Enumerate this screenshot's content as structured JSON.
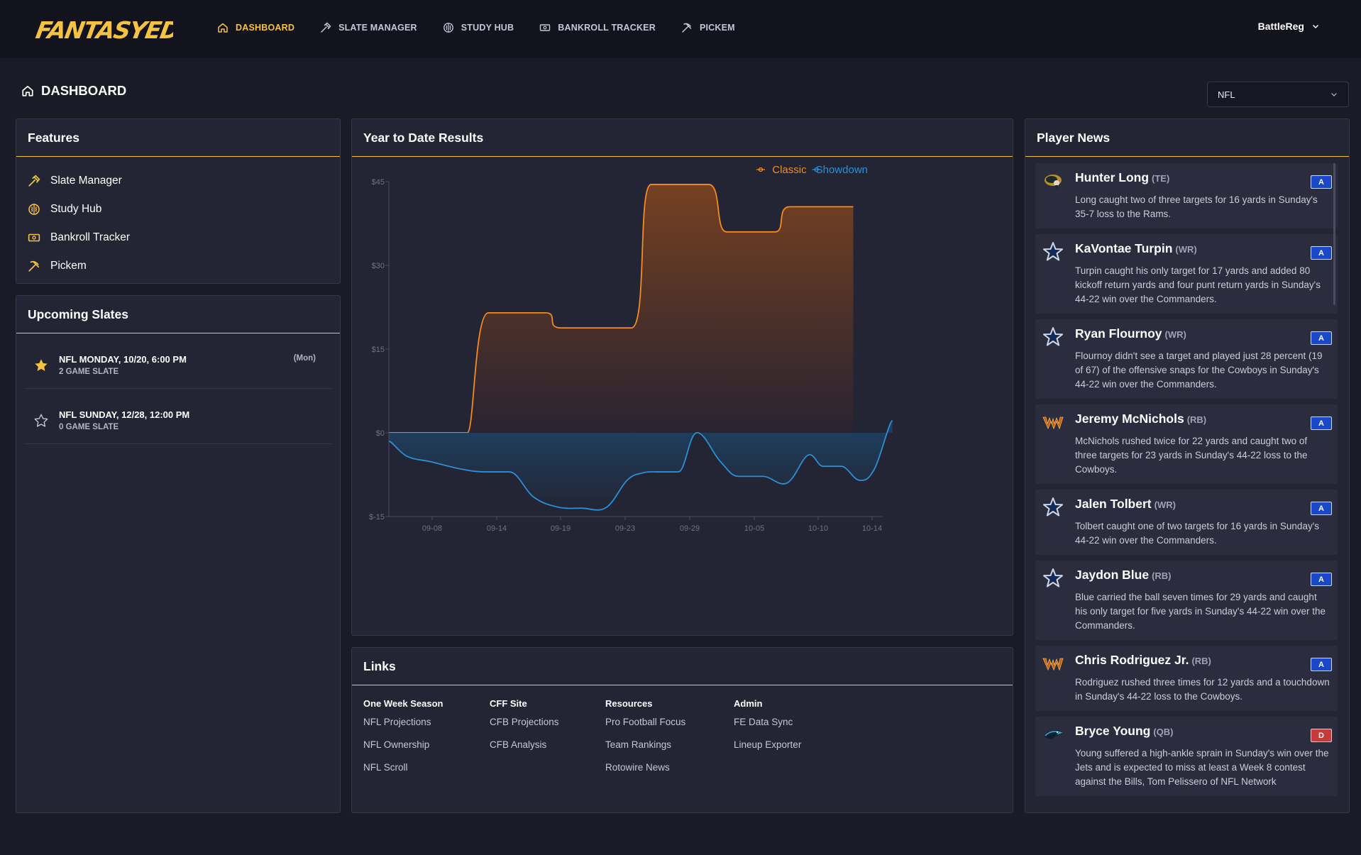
{
  "brand": {
    "logo_text": "FANTASYEDGE",
    "accent": "#f5c242"
  },
  "nav": {
    "items": [
      {
        "label": "DASHBOARD",
        "icon": "home-icon",
        "active": true
      },
      {
        "label": "SLATE MANAGER",
        "icon": "hammer-icon"
      },
      {
        "label": "STUDY HUB",
        "icon": "brain-icon"
      },
      {
        "label": "BANKROLL TRACKER",
        "icon": "money-icon"
      },
      {
        "label": "PICKEM",
        "icon": "pickaxe-icon"
      }
    ],
    "user": "BattleReg"
  },
  "page": {
    "title": "DASHBOARD",
    "sport_selected": "NFL"
  },
  "features": {
    "title": "Features",
    "items": [
      {
        "label": "Slate Manager",
        "icon": "hammer-icon"
      },
      {
        "label": "Study Hub",
        "icon": "brain-icon"
      },
      {
        "label": "Bankroll Tracker",
        "icon": "money-icon"
      },
      {
        "label": "Pickem",
        "icon": "pickaxe-icon"
      }
    ]
  },
  "slates": {
    "title": "Upcoming Slates",
    "items": [
      {
        "title": "NFL MONDAY, 10/20, 6:00 PM",
        "sub": "2 GAME SLATE",
        "day": "(Mon)",
        "starred": true
      },
      {
        "title": "NFL SUNDAY, 12/28, 12:00 PM",
        "sub": "0 GAME SLATE",
        "day": "",
        "starred": false
      }
    ]
  },
  "ytd": {
    "title": "Year to Date Results"
  },
  "chart_data": {
    "type": "area",
    "title": "Year to Date Results",
    "ylim": [
      -15,
      45
    ],
    "yticks": [
      "$45",
      "$30",
      "$15",
      "$0",
      "$-15"
    ],
    "ytick_values": [
      45,
      30,
      15,
      0,
      -15
    ],
    "xticks": [
      "09-08",
      "09-14",
      "09-19",
      "09-23",
      "09-29",
      "10-05",
      "10-10",
      "10-14"
    ],
    "legend_position": "top-right",
    "series": [
      {
        "name": "Classic",
        "color": "#f58b1f",
        "points": [
          [
            0,
            0
          ],
          [
            1,
            0
          ],
          [
            1.3,
            0
          ],
          [
            1.65,
            21.5
          ],
          [
            2.6,
            21.5
          ],
          [
            2.85,
            18.8
          ],
          [
            4.02,
            18.8
          ],
          [
            4.35,
            44.5
          ],
          [
            5.3,
            44.5
          ],
          [
            5.6,
            36
          ],
          [
            6.4,
            36
          ],
          [
            6.65,
            40.5
          ],
          [
            7.7,
            40.5
          ]
        ]
      },
      {
        "name": "Showdown",
        "color": "#2b8fd6",
        "points": [
          [
            0,
            -1.5
          ],
          [
            0.3,
            -4.2
          ],
          [
            0.7,
            -5.2
          ],
          [
            1.2,
            -6.5
          ],
          [
            1.6,
            -7
          ],
          [
            2.0,
            -7
          ],
          [
            2.4,
            -11.5
          ],
          [
            2.8,
            -13.3
          ],
          [
            3.2,
            -13.5
          ],
          [
            3.6,
            -13.4
          ],
          [
            3.95,
            -8.5
          ],
          [
            4.2,
            -7.2
          ],
          [
            4.45,
            -7
          ],
          [
            4.8,
            -7
          ],
          [
            5.1,
            0
          ],
          [
            5.5,
            -5.2
          ],
          [
            5.8,
            -7.8
          ],
          [
            6.2,
            -7.8
          ],
          [
            6.6,
            -9
          ],
          [
            6.95,
            -4
          ],
          [
            7.2,
            -6
          ],
          [
            7.5,
            -6
          ],
          [
            7.8,
            -8.5
          ],
          [
            8.05,
            -6.5
          ],
          [
            8.35,
            2.2
          ]
        ]
      }
    ]
  },
  "links": {
    "title": "Links",
    "columns": [
      {
        "head": "One Week Season",
        "items": [
          "NFL Projections",
          "NFL Ownership",
          "NFL Scroll"
        ]
      },
      {
        "head": "CFF Site",
        "items": [
          "CFB Projections",
          "CFB Analysis"
        ]
      },
      {
        "head": "Resources",
        "items": [
          "Pro Football Focus",
          "Team Rankings",
          "Rotowire News"
        ]
      },
      {
        "head": "Admin",
        "items": [
          "FE Data Sync",
          "Lineup Exporter"
        ]
      }
    ]
  },
  "news": {
    "title": "Player News",
    "items": [
      {
        "name": "Hunter Long",
        "pos": "(TE)",
        "team": "jaguars",
        "grade": "A",
        "text": "Long caught two of three targets for 16 yards in Sunday's 35-7 loss to the Rams."
      },
      {
        "name": "KaVontae Turpin",
        "pos": "(WR)",
        "team": "cowboys",
        "grade": "A",
        "text": "Turpin caught his only target for 17 yards and added 80 kickoff return yards and four punt return yards in Sunday's 44-22 win over the Commanders."
      },
      {
        "name": "Ryan Flournoy",
        "pos": "(WR)",
        "team": "cowboys",
        "grade": "A",
        "text": "Flournoy didn't see a target and played just 28 percent (19 of 67) of the offensive snaps for the Cowboys in Sunday's 44-22 win over the Commanders."
      },
      {
        "name": "Jeremy McNichols",
        "pos": "(RB)",
        "team": "commanders",
        "grade": "A",
        "text": "McNichols rushed twice for 22 yards and caught two of three targets for 23 yards in Sunday's 44-22 loss to the Cowboys."
      },
      {
        "name": "Jalen Tolbert",
        "pos": "(WR)",
        "team": "cowboys",
        "grade": "A",
        "text": "Tolbert caught one of two targets for 16 yards in Sunday's 44-22 win over the Commanders."
      },
      {
        "name": "Jaydon Blue",
        "pos": "(RB)",
        "team": "cowboys",
        "grade": "A",
        "text": "Blue carried the ball seven times for 29 yards and caught his only target for five yards in Sunday's 44-22 win over the Commanders."
      },
      {
        "name": "Chris Rodriguez Jr.",
        "pos": "(RB)",
        "team": "commanders",
        "grade": "A",
        "text": "Rodriguez rushed three times for 12 yards and a touchdown in Sunday's 44-22 loss to the Cowboys."
      },
      {
        "name": "Bryce Young",
        "pos": "(QB)",
        "team": "panthers",
        "grade": "D",
        "text": "Young suffered a high-ankle sprain in Sunday's win over the Jets and is expected to miss at least a Week 8 contest against the Bills, Tom Pelissero of NFL Network"
      }
    ]
  }
}
